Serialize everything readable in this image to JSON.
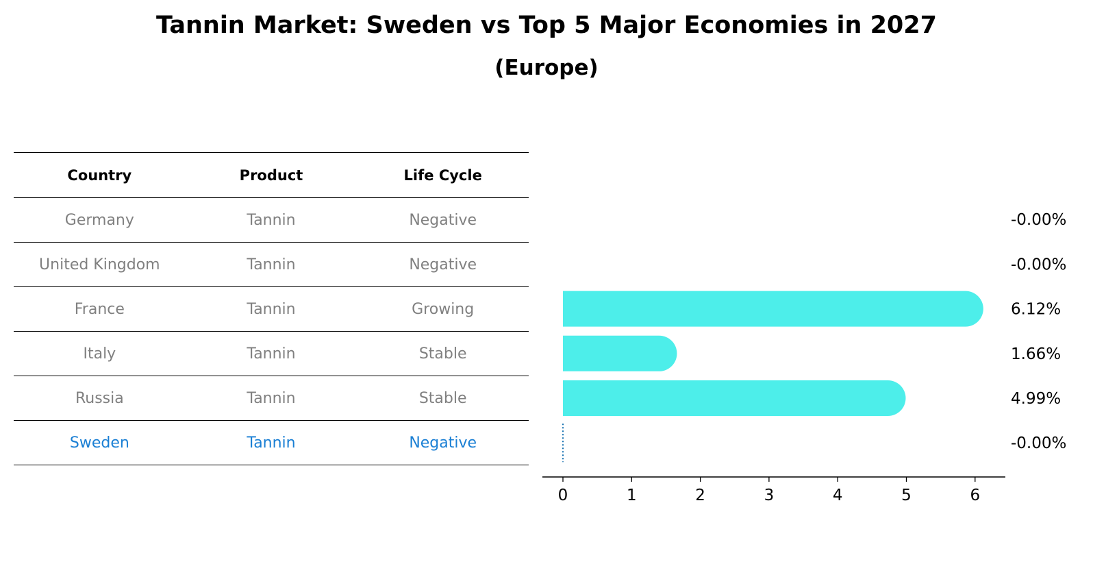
{
  "title": "Tannin Market: Sweden vs Top 5 Major Economies in 2027",
  "subtitle": "(Europe)",
  "table": {
    "headers": [
      "Country",
      "Product",
      "Life Cycle"
    ],
    "rows": [
      {
        "country": "Germany",
        "product": "Tannin",
        "life_cycle": "Negative"
      },
      {
        "country": "United Kingdom",
        "product": "Tannin",
        "life_cycle": "Negative"
      },
      {
        "country": "France",
        "product": "Tannin",
        "life_cycle": "Growing"
      },
      {
        "country": "Italy",
        "product": "Tannin",
        "life_cycle": "Stable"
      },
      {
        "country": "Russia",
        "product": "Tannin",
        "life_cycle": "Stable"
      },
      {
        "country": "Sweden",
        "product": "Tannin",
        "life_cycle": "Negative"
      }
    ],
    "highlight_color": "#1a7fd4",
    "text_color": "#808080"
  },
  "chart_data": {
    "type": "bar",
    "orientation": "horizontal",
    "categories": [
      "Germany",
      "United Kingdom",
      "France",
      "Italy",
      "Russia",
      "Sweden"
    ],
    "values": [
      -0.0,
      -0.0,
      6.12,
      1.66,
      4.99,
      -0.0
    ],
    "labels": [
      "-0.00%",
      "-0.00%",
      "6.12%",
      "1.66%",
      "4.99%",
      "-0.00%"
    ],
    "xlim": [
      -0.3,
      6.45
    ],
    "xticks": [
      0,
      1,
      2,
      3,
      4,
      5,
      6
    ],
    "bar_color": "#4deeea",
    "highlight_category": "Sweden",
    "highlight_color": "#1f77b4",
    "title": "",
    "xlabel": "",
    "ylabel": ""
  }
}
